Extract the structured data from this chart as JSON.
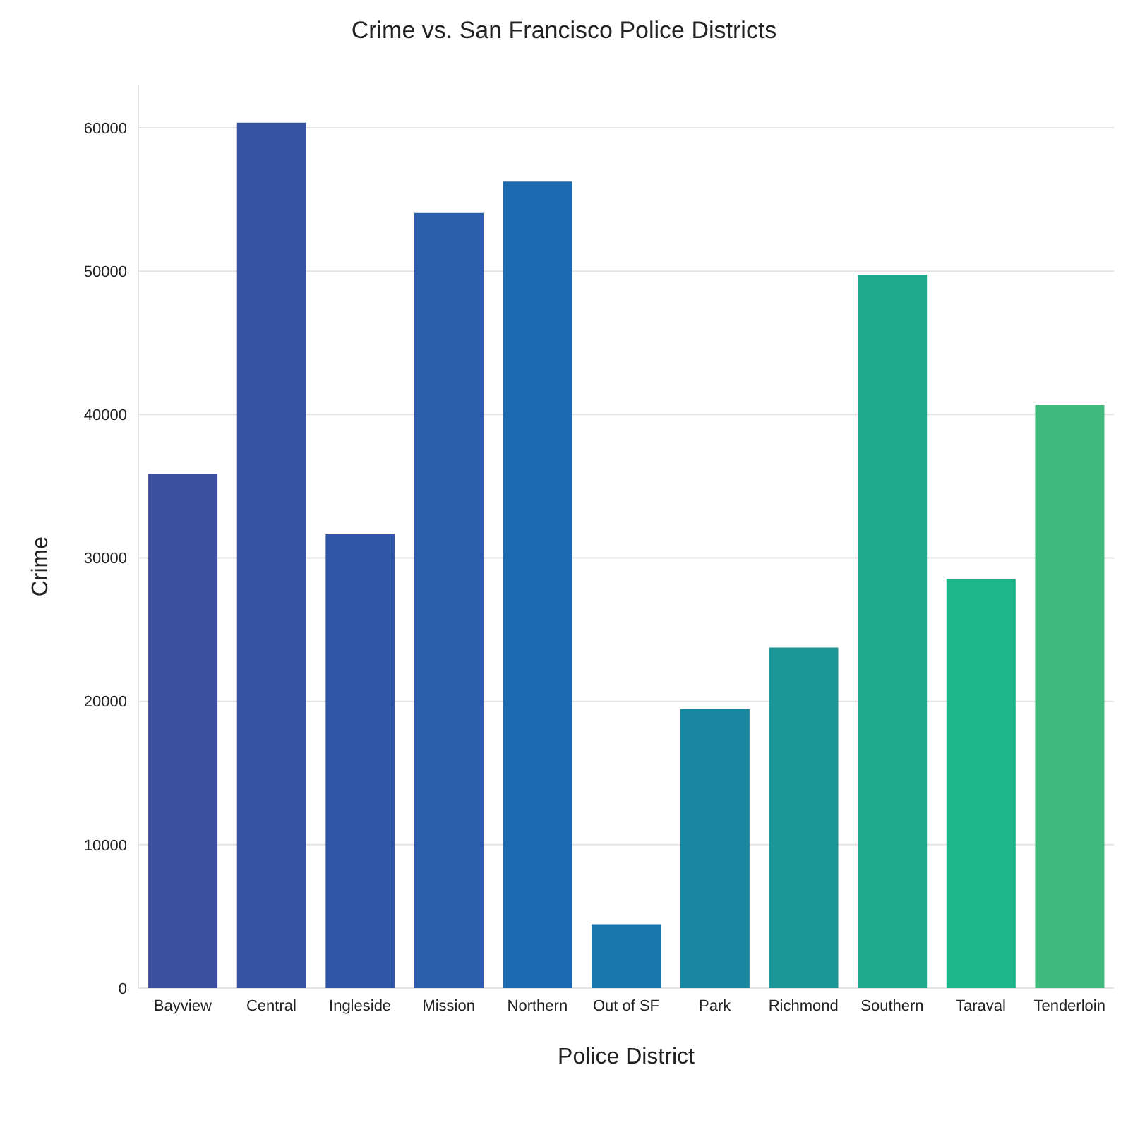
{
  "chart_data": {
    "type": "bar",
    "title": "Crime vs. San Francisco Police Districts",
    "xlabel": "Police District",
    "ylabel": "Crime",
    "categories": [
      "Bayview",
      "Central",
      "Ingleside",
      "Mission",
      "Northern",
      "Out of SF",
      "Park",
      "Richmond",
      "Southern",
      "Taraval",
      "Tenderloin"
    ],
    "values": [
      35800,
      60300,
      31600,
      54000,
      56200,
      4400,
      19400,
      23700,
      49700,
      28500,
      40600
    ],
    "colors": [
      "#3d4fa0",
      "#3751a3",
      "#3056a7",
      "#2d5eab",
      "#1b6ab2",
      "#1b76ad",
      "#1a87a1",
      "#1d9796",
      "#1ca98e",
      "#1cb68a",
      "#40ba7c"
    ],
    "ylim": [
      0,
      63000
    ],
    "yticks": [
      0,
      10000,
      20000,
      30000,
      40000,
      50000,
      60000
    ],
    "grid": "y"
  }
}
